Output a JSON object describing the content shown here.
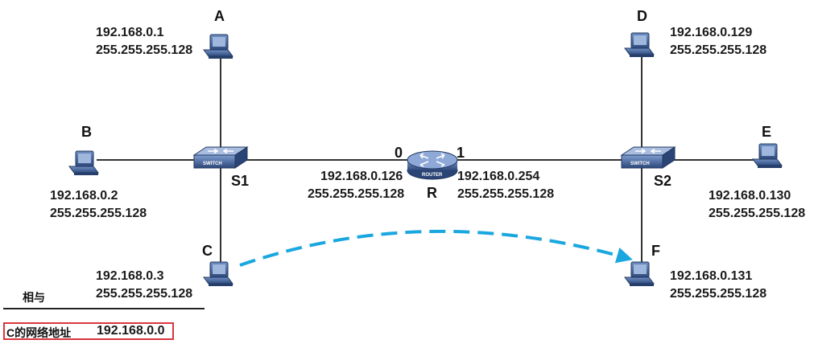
{
  "hosts": {
    "A": {
      "name": "A",
      "ip": "192.168.0.1",
      "mask": "255.255.255.128"
    },
    "B": {
      "name": "B",
      "ip": "192.168.0.2",
      "mask": "255.255.255.128"
    },
    "C": {
      "name": "C",
      "ip": "192.168.0.3",
      "mask": "255.255.255.128"
    },
    "D": {
      "name": "D",
      "ip": "192.168.0.129",
      "mask": "255.255.255.128"
    },
    "E": {
      "name": "E",
      "ip": "192.168.0.130",
      "mask": "255.255.255.128"
    },
    "F": {
      "name": "F",
      "ip": "192.168.0.131",
      "mask": "255.255.255.128"
    }
  },
  "switches": {
    "S1": {
      "name": "S1",
      "badge": "SWITCH"
    },
    "S2": {
      "name": "S2",
      "badge": "SWITCH"
    }
  },
  "router": {
    "name": "R",
    "badge": "ROUTER",
    "port0": {
      "label": "0",
      "ip": "192.168.0.126",
      "mask": "255.255.255.128"
    },
    "port1": {
      "label": "1",
      "ip": "192.168.0.254",
      "mask": "255.255.255.128"
    }
  },
  "calc": {
    "op_label": "相与",
    "result_label": "C的网络地址",
    "result_value": "192.168.0.0"
  },
  "colors": {
    "device_blue": "#3a5f9a",
    "arrow": "#1aa7e0",
    "box_border": "#d9363e",
    "line": "#333333"
  }
}
